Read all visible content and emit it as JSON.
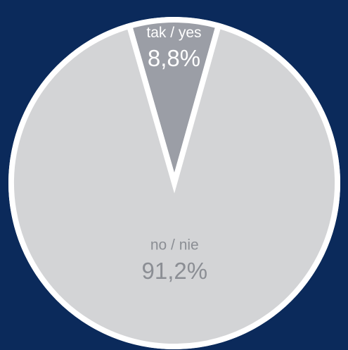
{
  "chart_data": {
    "type": "pie",
    "categories": [
      "tak / yes",
      "no / nie"
    ],
    "values": [
      8.8,
      91.2
    ],
    "value_labels": [
      "8,8%",
      "91,2%"
    ],
    "colors": [
      "#9b9ea6",
      "#d3d4d6"
    ]
  }
}
